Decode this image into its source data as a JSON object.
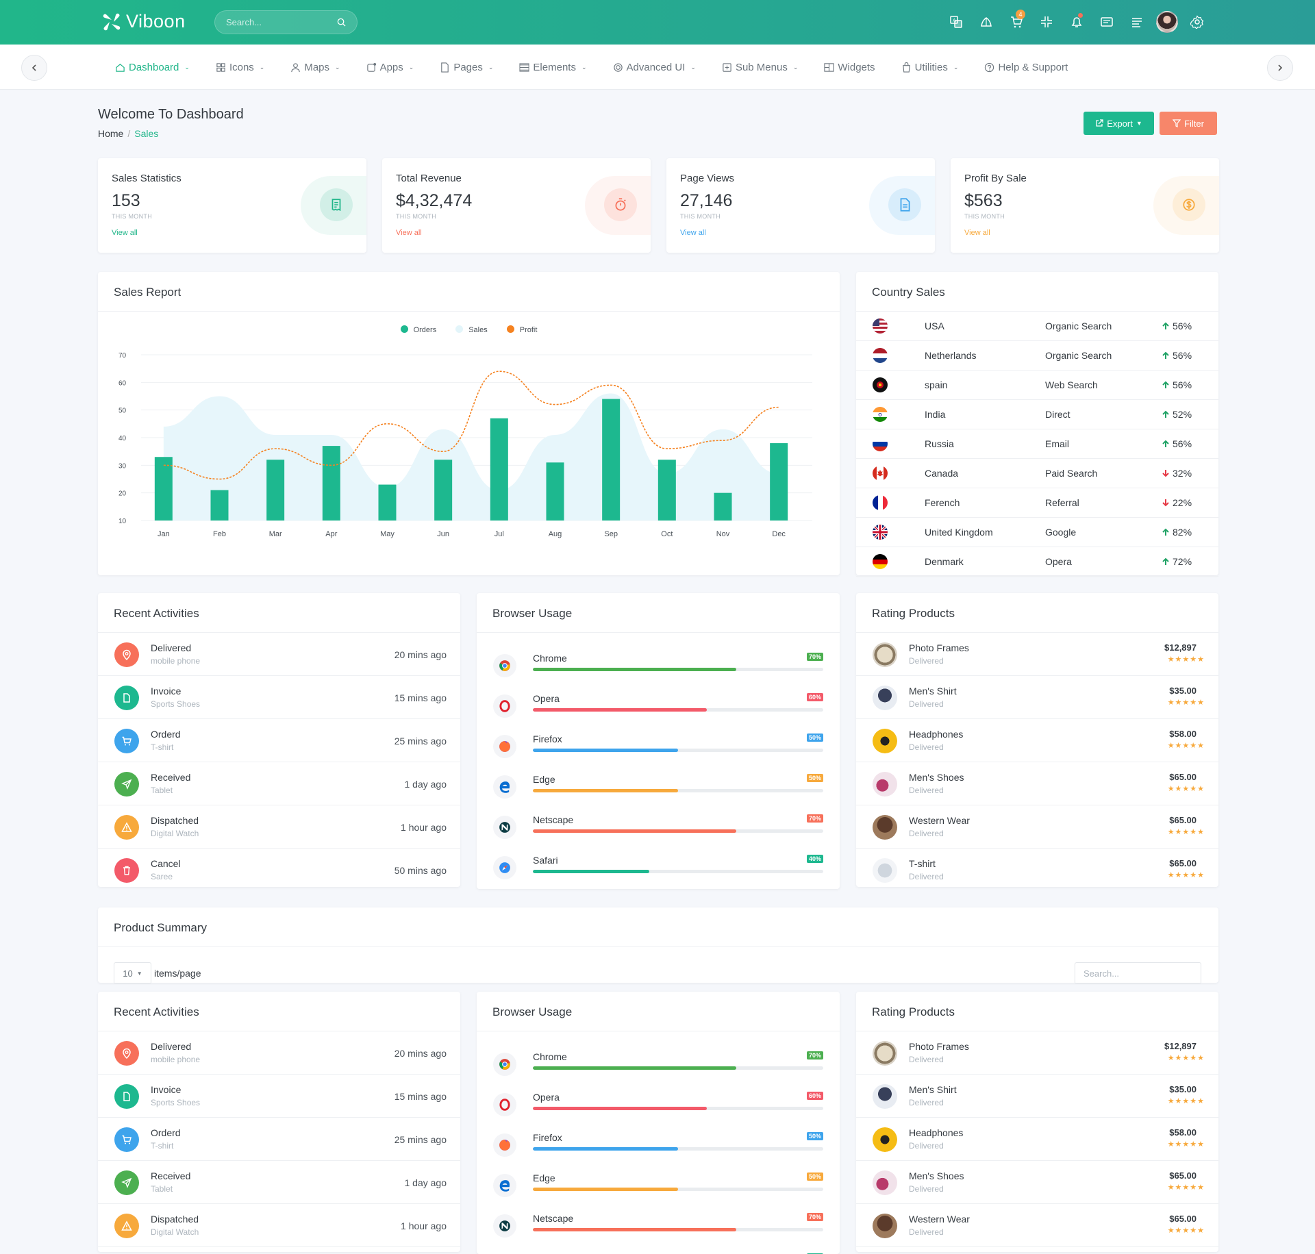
{
  "brand": {
    "name": "Viboon",
    "accent": "#21b68a"
  },
  "search": {
    "placeholder": "Search..."
  },
  "topbar": {
    "cart_badge": "4",
    "icons": [
      "translate-icon",
      "theme-icon",
      "cart-icon",
      "collapse-icon",
      "bell-icon",
      "message-icon",
      "list-icon",
      "avatar",
      "gear-icon"
    ]
  },
  "nav": {
    "items": [
      {
        "label": "Dashboard",
        "icon": "home-icon",
        "active": true,
        "dropdown": true
      },
      {
        "label": "Icons",
        "icon": "grid-icon",
        "dropdown": true
      },
      {
        "label": "Maps",
        "icon": "user-icon",
        "dropdown": true
      },
      {
        "label": "Apps",
        "icon": "apps-icon",
        "dropdown": true
      },
      {
        "label": "Pages",
        "icon": "page-icon",
        "dropdown": true
      },
      {
        "label": "Elements",
        "icon": "layers-icon",
        "dropdown": true
      },
      {
        "label": "Advanced UI",
        "icon": "settings-icon",
        "dropdown": true
      },
      {
        "label": "Sub Menus",
        "icon": "plus-square-icon",
        "dropdown": true
      },
      {
        "label": "Widgets",
        "icon": "widget-icon",
        "dropdown": false
      },
      {
        "label": "Utilities",
        "icon": "bag-icon",
        "dropdown": true
      },
      {
        "label": "Help & Support",
        "icon": "help-icon",
        "dropdown": false
      }
    ]
  },
  "page": {
    "title": "Welcome To Dashboard",
    "breadcrumb": [
      "Home",
      "Sales"
    ]
  },
  "actions": {
    "export": "Export",
    "filter": "Filter"
  },
  "stats": [
    {
      "label": "Sales Statistics",
      "value": "153",
      "sub": "THIS MONTH",
      "link": "View all",
      "color": "#21b68a",
      "icon": "receipt-icon"
    },
    {
      "label": "Total Revenue",
      "value": "$4,32,474",
      "sub": "THIS MONTH",
      "link": "View all",
      "color": "#f7705a",
      "icon": "stopwatch-icon"
    },
    {
      "label": "Page Views",
      "value": "27,146",
      "sub": "THIS MONTH",
      "link": "View all",
      "color": "#3ea4ec",
      "icon": "document-icon"
    },
    {
      "label": "Profit By Sale",
      "value": "$563",
      "sub": "THIS MONTH",
      "link": "View all",
      "color": "#f7a93c",
      "icon": "dollar-icon"
    }
  ],
  "sales_report": {
    "title": "Sales Report"
  },
  "chart_data": {
    "type": "bar",
    "categories": [
      "Jan",
      "Feb",
      "Mar",
      "Apr",
      "May",
      "Jun",
      "Jul",
      "Aug",
      "Sep",
      "Oct",
      "Nov",
      "Dec"
    ],
    "series": [
      {
        "name": "Orders",
        "type": "bar",
        "color": "#1db88f",
        "values": [
          33,
          21,
          32,
          37,
          23,
          32,
          47,
          31,
          54,
          32,
          20,
          38
        ]
      },
      {
        "name": "Sales",
        "type": "area",
        "color": "#e7f6fb",
        "values": [
          44,
          55,
          41,
          41,
          22,
          43,
          21,
          41,
          56,
          27,
          43,
          27
        ]
      },
      {
        "name": "Profit",
        "type": "line",
        "color": "#f58220",
        "values": [
          30,
          25,
          36,
          30,
          45,
          35,
          64,
          52,
          59,
          36,
          39,
          51
        ]
      }
    ],
    "yticks": [
      10,
      20,
      30,
      40,
      50,
      60,
      70
    ],
    "ylim": [
      10,
      70
    ],
    "legend": "top-center",
    "grid": true
  },
  "country_sales": {
    "title": "Country Sales",
    "rows": [
      {
        "country": "USA",
        "source": "Organic Search",
        "pct": "56%",
        "trend": "up"
      },
      {
        "country": "Netherlands",
        "source": "Organic Search",
        "pct": "56%",
        "trend": "up"
      },
      {
        "country": "spain",
        "source": "Web Search",
        "pct": "56%",
        "trend": "up"
      },
      {
        "country": "India",
        "source": "Direct",
        "pct": "52%",
        "trend": "up"
      },
      {
        "country": "Russia",
        "source": "Email",
        "pct": "56%",
        "trend": "up"
      },
      {
        "country": "Canada",
        "source": "Paid Search",
        "pct": "32%",
        "trend": "down"
      },
      {
        "country": "Ferench",
        "source": "Referral",
        "pct": "22%",
        "trend": "down"
      },
      {
        "country": "United Kingdom",
        "source": "Google",
        "pct": "82%",
        "trend": "up"
      },
      {
        "country": "Denmark",
        "source": "Opera",
        "pct": "72%",
        "trend": "up"
      }
    ]
  },
  "recent_activities": {
    "title": "Recent Activities",
    "items": [
      {
        "title": "Delivered",
        "sub": "mobile phone",
        "time": "20 mins ago",
        "color": "#f7705a",
        "icon": "location-icon"
      },
      {
        "title": "Invoice",
        "sub": "Sports Shoes",
        "time": "15 mins ago",
        "color": "#1db88f",
        "icon": "file-icon"
      },
      {
        "title": "Orderd",
        "sub": "T-shirt",
        "time": "25 mins ago",
        "color": "#3ea4ec",
        "icon": "cart-icon"
      },
      {
        "title": "Received",
        "sub": "Tablet",
        "time": "1 day ago",
        "color": "#4caf50",
        "icon": "send-icon"
      },
      {
        "title": "Dispatched",
        "sub": "Digital Watch",
        "time": "1 hour ago",
        "color": "#f7a93c",
        "icon": "warning-icon"
      },
      {
        "title": "Cancel",
        "sub": "Saree",
        "time": "50 mins ago",
        "color": "#f35a69",
        "icon": "trash-icon"
      }
    ]
  },
  "browser_usage": {
    "title": "Browser Usage",
    "items": [
      {
        "name": "Chrome",
        "pct": "70%",
        "value": 70,
        "color": "#4caf50",
        "icon": "chrome-icon"
      },
      {
        "name": "Opera",
        "pct": "60%",
        "value": 60,
        "color": "#f35a69",
        "icon": "opera-icon"
      },
      {
        "name": "Firefox",
        "pct": "50%",
        "value": 50,
        "color": "#3ea4ec",
        "icon": "firefox-icon"
      },
      {
        "name": "Edge",
        "pct": "50%",
        "value": 50,
        "color": "#f7a93c",
        "icon": "edge-icon"
      },
      {
        "name": "Netscape",
        "pct": "70%",
        "value": 70,
        "color": "#f7705a",
        "icon": "netscape-icon"
      },
      {
        "name": "Safari",
        "pct": "40%",
        "value": 40,
        "color": "#1db88f",
        "icon": "safari-icon"
      }
    ]
  },
  "rating_products": {
    "title": "Rating Products",
    "items": [
      {
        "name": "Photo Frames",
        "status": "Delivered",
        "price": "$12,897",
        "stars": "★★★★★"
      },
      {
        "name": "Men's Shirt",
        "status": "Delivered",
        "price": "$35.00",
        "stars": "★★★★★"
      },
      {
        "name": "Headphones",
        "status": "Delivered",
        "price": "$58.00",
        "stars": "★★★★★"
      },
      {
        "name": "Men's Shoes",
        "status": "Delivered",
        "price": "$65.00",
        "stars": "★★★★★"
      },
      {
        "name": "Western Wear",
        "status": "Delivered",
        "price": "$65.00",
        "stars": "★★★★★"
      },
      {
        "name": "T-shirt",
        "status": "Delivered",
        "price": "$65.00",
        "stars": "★★★★★"
      }
    ]
  },
  "product_summary": {
    "title": "Product Summary",
    "page_size": "10",
    "items_per_page": "items/page",
    "search_placeholder": "Search..."
  }
}
